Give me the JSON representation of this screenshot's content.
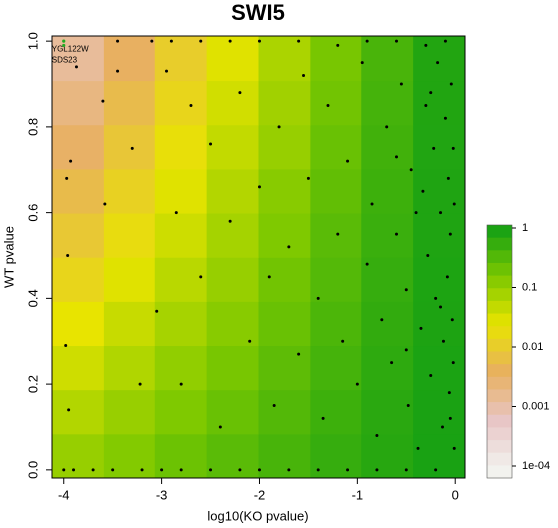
{
  "chart_data": {
    "type": "scatter-heatmap",
    "title": "SWI5",
    "xlabel": "log10(KO pvalue)",
    "ylabel": "WT pvalue",
    "xlim": [
      -4.12,
      0.1
    ],
    "ylim": [
      -0.019,
      1.012
    ],
    "xticks": [
      -4,
      -3,
      -2,
      -1,
      0
    ],
    "yticks": [
      {
        "value": 0,
        "label": "0.0"
      },
      0.2,
      0.4,
      0.6,
      0.8,
      {
        "value": 1,
        "label": "1.0"
      }
    ],
    "heatmap": {
      "xbins": [
        -4.12,
        -3.59,
        -3.07,
        -2.54,
        -2.01,
        -1.48,
        -0.96,
        -0.43,
        0.1
      ],
      "ybins": [
        -0.019,
        0.084,
        0.187,
        0.29,
        0.393,
        0.496,
        0.599,
        0.702,
        0.805,
        0.908,
        1.012
      ],
      "values": [
        [
          0.1,
          0.14,
          0.21,
          0.29,
          0.4,
          0.55,
          0.72,
          0.91
        ],
        [
          0.063,
          0.098,
          0.15,
          0.22,
          0.33,
          0.48,
          0.68,
          0.9
        ],
        [
          0.039,
          0.065,
          0.11,
          0.17,
          0.27,
          0.42,
          0.63,
          0.88
        ],
        [
          0.025,
          0.044,
          0.078,
          0.13,
          0.22,
          0.37,
          0.59,
          0.86
        ],
        [
          0.015,
          0.029,
          0.056,
          0.1,
          0.19,
          0.32,
          0.55,
          0.85
        ],
        [
          0.0093,
          0.019,
          0.04,
          0.079,
          0.15,
          0.29,
          0.51,
          0.83
        ],
        [
          0.0059,
          0.013,
          0.029,
          0.062,
          0.13,
          0.25,
          0.48,
          0.82
        ],
        [
          0.0036,
          0.0087,
          0.021,
          0.048,
          0.1,
          0.22,
          0.45,
          0.8
        ],
        [
          0.0022,
          0.0058,
          0.015,
          0.037,
          0.085,
          0.19,
          0.42,
          0.79
        ],
        [
          0.0014,
          0.0039,
          0.011,
          0.029,
          0.071,
          0.17,
          0.39,
          0.78
        ]
      ]
    },
    "colorscale": [
      "#f2f2ee",
      "#e8c6c6",
      "#e8b060",
      "#e8e400",
      "#7cc800",
      "#14a014"
    ],
    "colorbar": {
      "lim": [
        0.0001,
        1
      ],
      "ticks": [
        1,
        0.1,
        0.01,
        0.001,
        {
          "value": 0.0001,
          "label": "1e-04"
        }
      ]
    },
    "point_color": "#000000",
    "x": [
      -4.0,
      -3.9,
      -3.7,
      -3.5,
      -3.2,
      -3.0,
      -2.8,
      -2.5,
      -2.2,
      -2.0,
      -1.7,
      -1.4,
      -1.1,
      -0.8,
      -0.5,
      -0.2,
      -3.45,
      -3.1,
      -2.9,
      -2.6,
      -2.3,
      -2.0,
      -1.6,
      -1.2,
      -0.9,
      -0.6,
      -0.3,
      -0.1,
      -3.97,
      -3.96,
      -3.98,
      -3.95,
      -3.93,
      -3.87,
      -3.6,
      -3.58,
      -3.45,
      -3.3,
      -3.22,
      -3.05,
      -2.95,
      -2.85,
      -2.8,
      -2.7,
      -2.6,
      -2.5,
      -2.4,
      -2.3,
      -2.2,
      -2.1,
      -2.0,
      -1.9,
      -1.85,
      -1.8,
      -1.7,
      -1.6,
      -1.55,
      -1.5,
      -1.4,
      -1.35,
      -1.3,
      -1.2,
      -1.15,
      -1.1,
      -1.0,
      -0.95,
      -0.9,
      -0.85,
      -0.8,
      -0.75,
      -0.7,
      -0.65,
      -0.6,
      -0.55,
      -0.5,
      -0.48,
      -0.45,
      -0.4,
      -0.38,
      -0.35,
      -0.3,
      -0.28,
      -0.25,
      -0.22,
      -0.2,
      -0.18,
      -0.15,
      -0.13,
      -0.12,
      -0.1,
      -0.08,
      -0.07,
      -0.06,
      -0.05,
      -0.04,
      -0.03,
      -0.02,
      -0.02,
      -0.01,
      -0.01,
      -0.5,
      -0.33,
      -0.15,
      -0.6,
      -0.25,
      -0.05
    ],
    "y": [
      0.0,
      0.0,
      0.0,
      0.0,
      0.0,
      0.0,
      0.0,
      0.0,
      0.0,
      0.0,
      0.0,
      0.0,
      0.0,
      0.0,
      0.0,
      0.0,
      1.0,
      1.0,
      1.0,
      1.0,
      1.0,
      1.0,
      1.0,
      0.99,
      1.0,
      1.0,
      0.99,
      1.0,
      0.68,
      0.5,
      0.29,
      0.14,
      0.72,
      0.94,
      0.86,
      0.62,
      0.93,
      0.75,
      0.2,
      0.37,
      0.93,
      0.6,
      0.2,
      0.85,
      0.45,
      0.76,
      0.1,
      0.58,
      0.88,
      0.3,
      0.66,
      0.45,
      0.15,
      0.8,
      0.52,
      0.27,
      0.92,
      0.68,
      0.4,
      0.12,
      0.85,
      0.55,
      0.3,
      0.72,
      0.2,
      0.95,
      0.48,
      0.62,
      0.08,
      0.35,
      0.8,
      0.25,
      0.55,
      0.9,
      0.42,
      0.15,
      0.7,
      0.6,
      0.05,
      0.33,
      0.85,
      0.5,
      0.22,
      0.75,
      0.4,
      0.95,
      0.6,
      0.1,
      0.3,
      0.82,
      0.45,
      0.68,
      0.18,
      0.55,
      0.9,
      0.35,
      0.75,
      0.25,
      0.62,
      0.05,
      0.28,
      0.65,
      0.38,
      0.73,
      0.88,
      0.12
    ],
    "highlight": {
      "x": [
        -4.0,
        -4.0
      ],
      "y": [
        1.0,
        0.99
      ],
      "labels": [
        "YGL122W",
        "SDS23"
      ],
      "color": "#22aa22"
    }
  }
}
